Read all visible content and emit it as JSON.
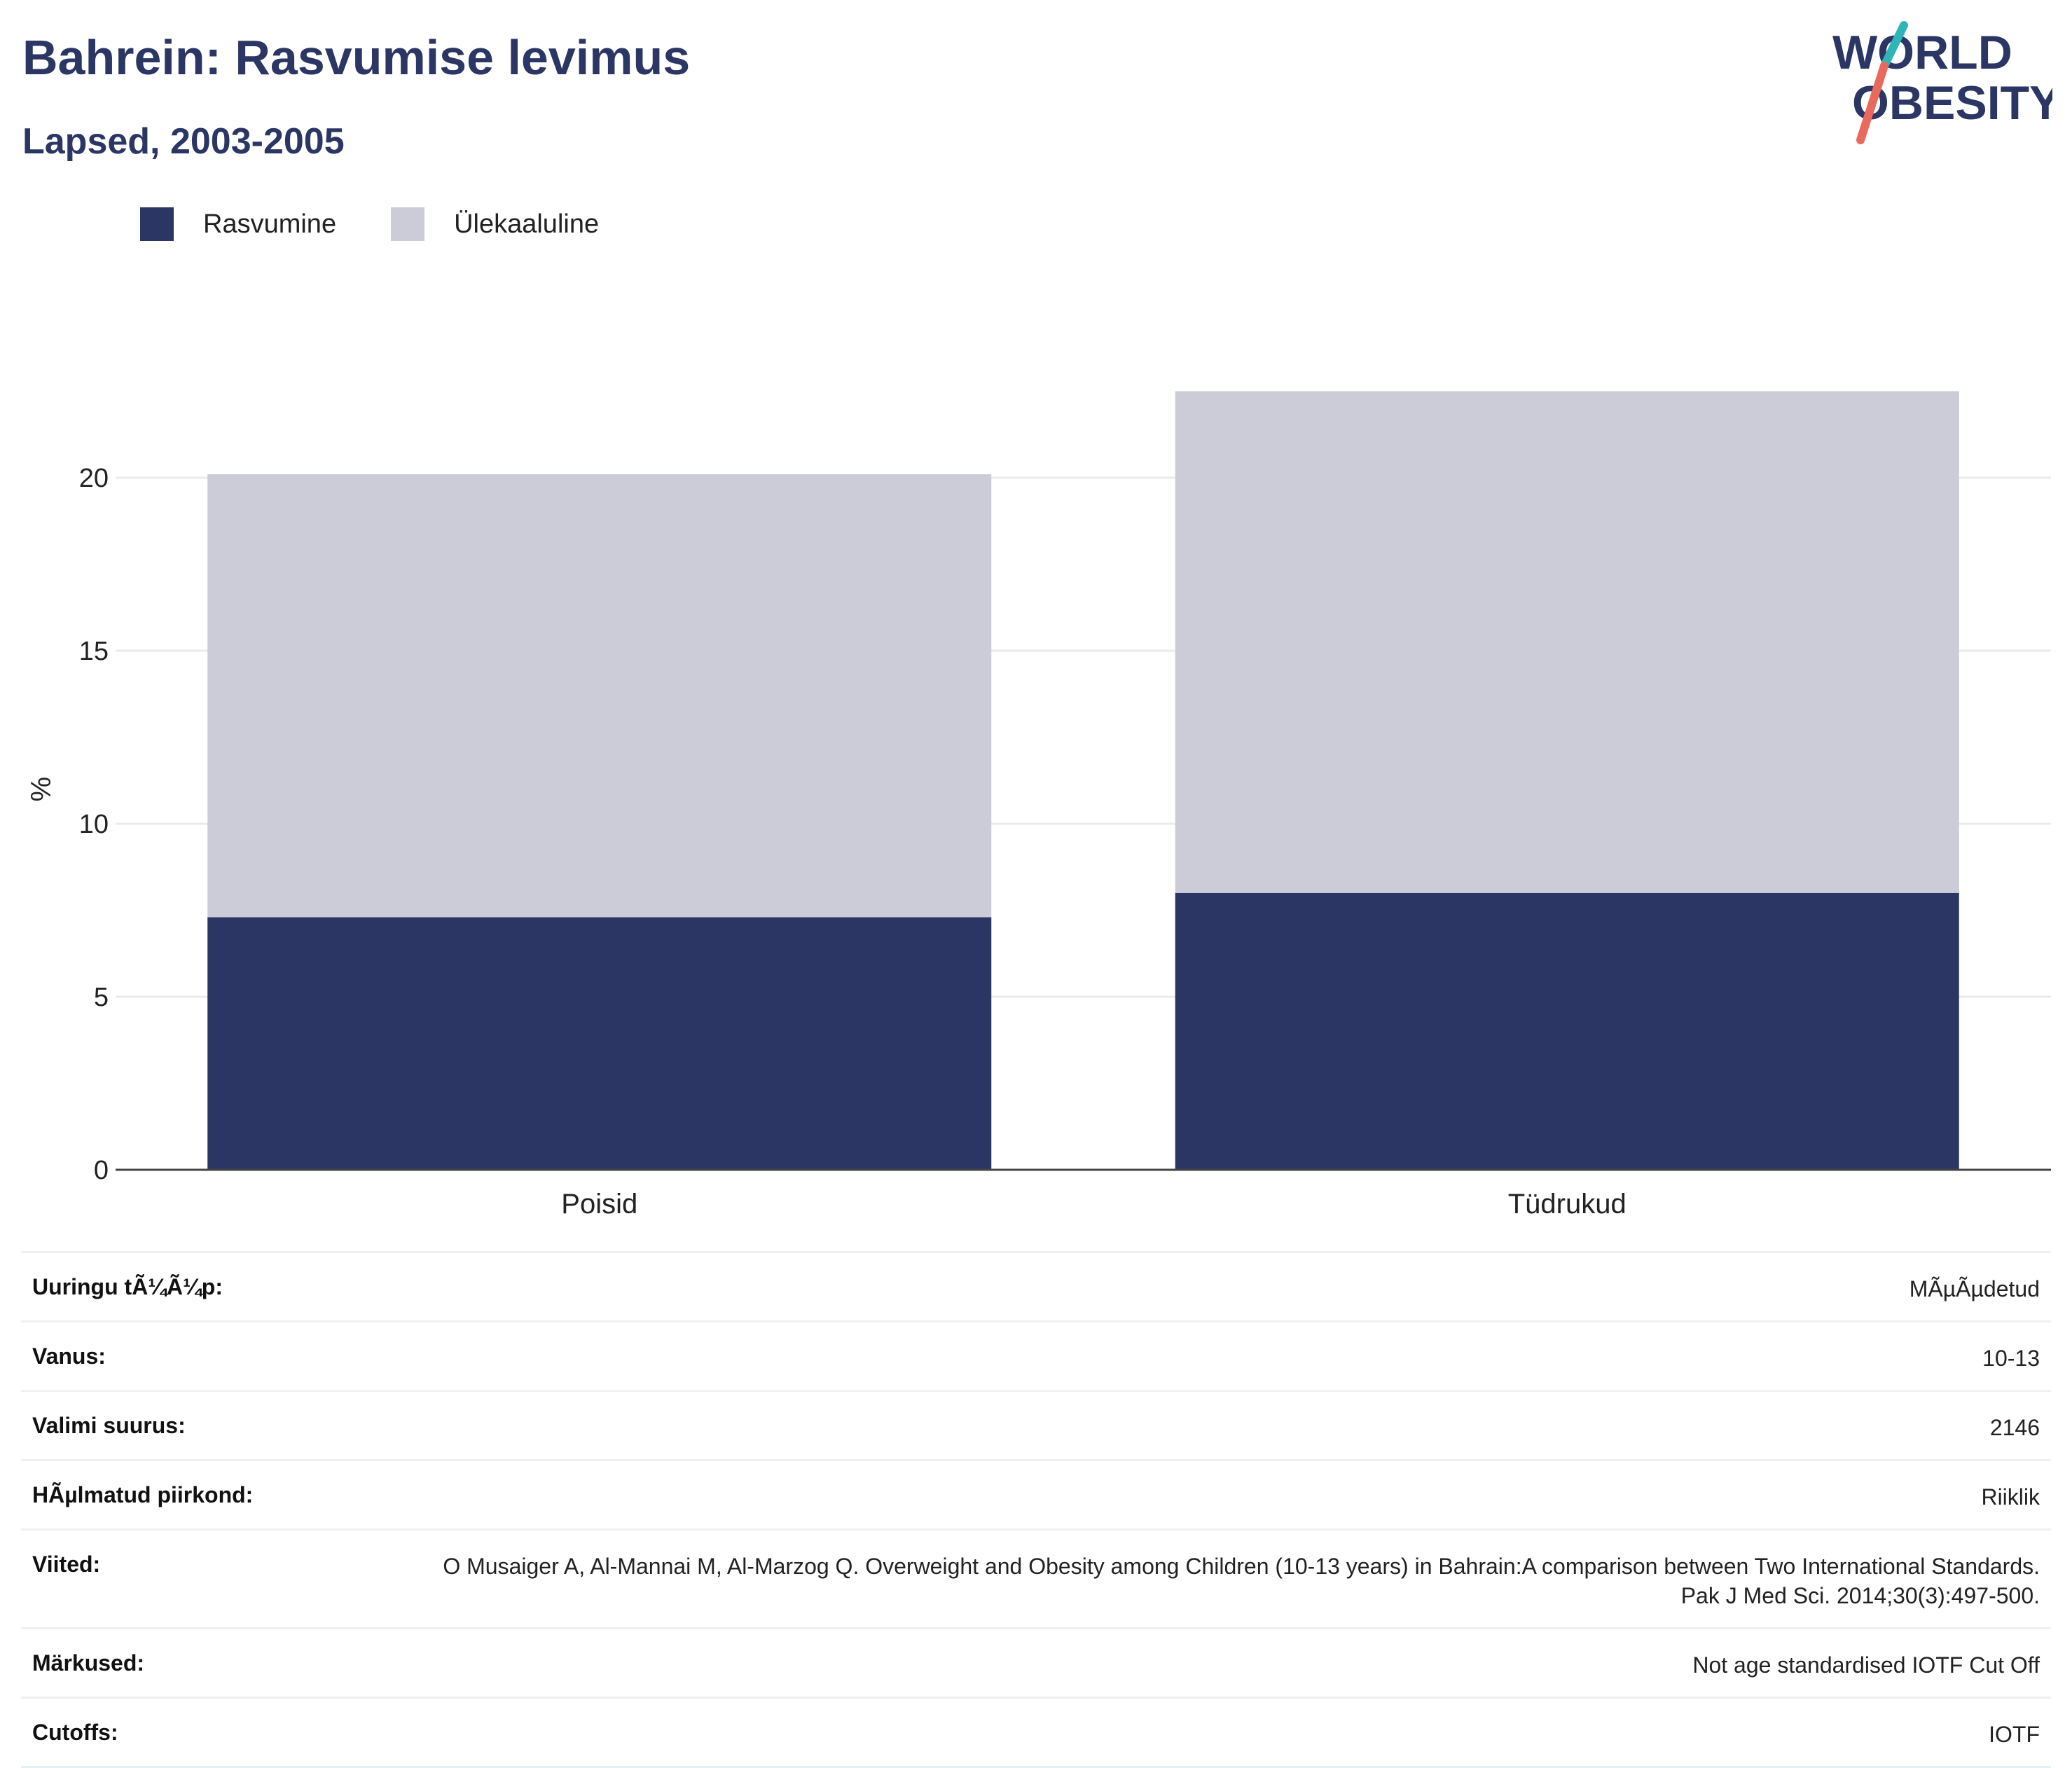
{
  "header": {
    "title": "Bahrein: Rasvumise levimus",
    "subtitle": "Lapsed, 2003-2005",
    "logo_text": [
      "WORLD",
      "OBESITY"
    ]
  },
  "legend": [
    {
      "label": "Rasvumine",
      "color": "#2b3664"
    },
    {
      "label": "Ülekaaluline",
      "color": "#cbccd7"
    }
  ],
  "chart_data": {
    "type": "bar",
    "stacked": true,
    "categories": [
      "Poisid",
      "Tüdrukud"
    ],
    "series": [
      {
        "name": "Rasvumine",
        "values": [
          7.3,
          8.0
        ],
        "color": "#2b3664"
      },
      {
        "name": "Ülekaaluline",
        "values": [
          12.8,
          14.5
        ],
        "color": "#cbccd7"
      }
    ],
    "ylabel": "%",
    "xlabel": "",
    "ylim": [
      0,
      23
    ],
    "yticks": [
      0,
      5,
      10,
      15,
      20
    ],
    "grid": true
  },
  "info": [
    {
      "label": "Uuringu tÃ¼Ã¼p:",
      "value": "MÃµÃµdetud"
    },
    {
      "label": "Vanus:",
      "value": "10-13"
    },
    {
      "label": "Valimi suurus:",
      "value": "2146"
    },
    {
      "label": "HÃµlmatud piirkond:",
      "value": "Riiklik"
    },
    {
      "label": "Viited:",
      "value": "O Musaiger A, Al-Mannai M, Al-Marzog Q. Overweight and Obesity among Children (10-13 years) in Bahrain:A comparison between Two International Standards. Pak J Med Sci. 2014;30(3):497-500."
    },
    {
      "label": "Märkused:",
      "value": "Not age standardised IOTF Cut Off"
    },
    {
      "label": "Cutoffs:",
      "value": "IOTF"
    }
  ]
}
